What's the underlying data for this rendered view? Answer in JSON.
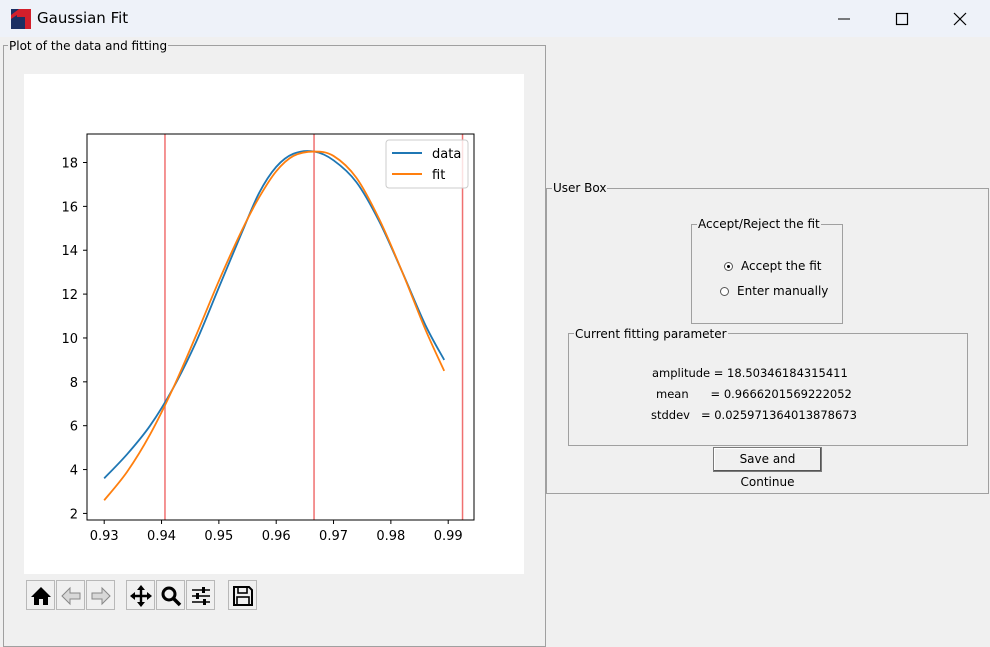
{
  "window": {
    "title": "Gaussian Fit",
    "controls": [
      "minimize",
      "maximize",
      "close"
    ]
  },
  "plot_panel": {
    "label": "Plot of the data and fitting"
  },
  "chart_data": {
    "type": "line",
    "title": "",
    "xlabel": "",
    "ylabel": "",
    "xlim": [
      0.927,
      0.9945
    ],
    "ylim": [
      1.7,
      19.3
    ],
    "x_ticks": [
      "0.93",
      "0.94",
      "0.95",
      "0.96",
      "0.97",
      "0.98",
      "0.99"
    ],
    "x_tick_values": [
      0.93,
      0.94,
      0.95,
      0.96,
      0.97,
      0.98,
      0.99
    ],
    "y_ticks": [
      "2",
      "4",
      "6",
      "8",
      "10",
      "12",
      "14",
      "16",
      "18"
    ],
    "y_tick_values": [
      2,
      4,
      6,
      8,
      10,
      12,
      14,
      16,
      18
    ],
    "legend_position": "top-right",
    "series": [
      {
        "name": "data",
        "color": "#1f77b4",
        "x": [
          0.93,
          0.934,
          0.938,
          0.942,
          0.946,
          0.95,
          0.954,
          0.957,
          0.96,
          0.963,
          0.9666,
          0.97,
          0.974,
          0.978,
          0.982,
          0.986,
          0.9893
        ],
        "y": [
          3.6,
          4.7,
          6.0,
          7.7,
          9.8,
          12.3,
          14.8,
          16.6,
          17.8,
          18.4,
          18.5,
          18.1,
          17.1,
          15.3,
          13.0,
          10.6,
          9.0
        ]
      },
      {
        "name": "fit",
        "color": "#ff7f0e",
        "x": [
          0.93,
          0.934,
          0.938,
          0.942,
          0.946,
          0.95,
          0.954,
          0.957,
          0.96,
          0.963,
          0.9666,
          0.97,
          0.974,
          0.978,
          0.982,
          0.986,
          0.9893
        ],
        "y": [
          2.6,
          3.9,
          5.6,
          7.7,
          10.1,
          12.6,
          14.9,
          16.4,
          17.6,
          18.3,
          18.5,
          18.3,
          17.3,
          15.4,
          13.0,
          10.4,
          8.5
        ]
      }
    ],
    "vlines": {
      "color": "#f07070",
      "x": [
        0.9406,
        0.9666,
        0.9925
      ]
    }
  },
  "toolbar": {
    "buttons": [
      {
        "name": "home-icon"
      },
      {
        "name": "back-arrow-icon"
      },
      {
        "name": "forward-arrow-icon"
      },
      {
        "name": "pan-icon"
      },
      {
        "name": "zoom-icon"
      },
      {
        "name": "configure-subplots-icon"
      },
      {
        "name": "save-figure-icon"
      }
    ]
  },
  "user_box": {
    "label": "User Box",
    "accept_group": {
      "label": "Accept/Reject the fit",
      "options": [
        {
          "label": "Accept the fit",
          "selected": true
        },
        {
          "label": "Enter manually",
          "selected": false
        }
      ]
    },
    "params_group": {
      "label": "Current fitting parameter",
      "lines": [
        "amplitude = 18.50346184315411",
        "mean      = 0.9666201569222052",
        "stddev   = 0.025971364013878673"
      ]
    },
    "save_button": "Save and Continue"
  }
}
